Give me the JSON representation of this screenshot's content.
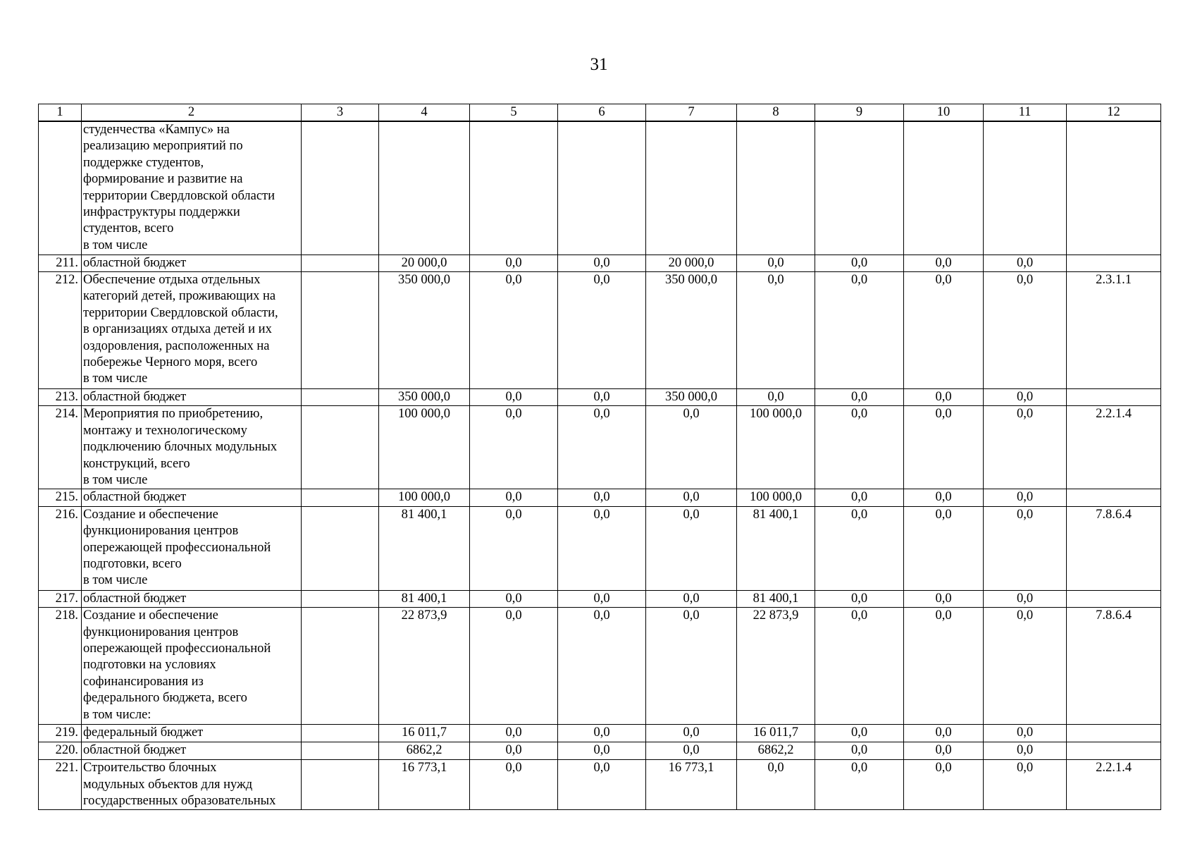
{
  "page_number": "31",
  "table": {
    "headers": [
      "1",
      "2",
      "3",
      "4",
      "5",
      "6",
      "7",
      "8",
      "9",
      "10",
      "11",
      "12"
    ],
    "rows": [
      {
        "n": "",
        "desc": [
          "студенчества «Кампус» на",
          "реализацию мероприятий по",
          "поддержке студентов,",
          "формирование и развитие на",
          "территории Свердловской области",
          "инфраструктуры поддержки",
          "студентов, всего",
          "в том числе"
        ],
        "c3": "",
        "values": [
          "",
          "",
          "",
          "",
          "",
          "",
          "",
          ""
        ],
        "code": ""
      },
      {
        "n": "211.",
        "desc": [
          "областной бюджет"
        ],
        "c3": "",
        "values": [
          "20 000,0",
          "0,0",
          "0,0",
          "20 000,0",
          "0,0",
          "0,0",
          "0,0",
          "0,0"
        ],
        "code": ""
      },
      {
        "n": "212.",
        "desc": [
          "Обеспечение отдыха отдельных",
          "категорий детей, проживающих на",
          "территории Свердловской области,",
          "в организациях отдыха детей и их",
          "оздоровления, расположенных на",
          "побережье Черного моря, всего",
          "в том числе"
        ],
        "c3": "",
        "values": [
          "350 000,0",
          "0,0",
          "0,0",
          "350 000,0",
          "0,0",
          "0,0",
          "0,0",
          "0,0"
        ],
        "code": "2.3.1.1"
      },
      {
        "n": "213.",
        "desc": [
          "областной бюджет"
        ],
        "c3": "",
        "values": [
          "350 000,0",
          "0,0",
          "0,0",
          "350 000,0",
          "0,0",
          "0,0",
          "0,0",
          "0,0"
        ],
        "code": ""
      },
      {
        "n": "214.",
        "desc": [
          "Мероприятия по приобретению,",
          "монтажу и технологическому",
          "подключению блочных модульных",
          "конструкций, всего",
          "в том числе"
        ],
        "c3": "",
        "values": [
          "100 000,0",
          "0,0",
          "0,0",
          "0,0",
          "100 000,0",
          "0,0",
          "0,0",
          "0,0"
        ],
        "code": "2.2.1.4"
      },
      {
        "n": "215.",
        "desc": [
          "областной бюджет"
        ],
        "c3": "",
        "values": [
          "100 000,0",
          "0,0",
          "0,0",
          "0,0",
          "100 000,0",
          "0,0",
          "0,0",
          "0,0"
        ],
        "code": ""
      },
      {
        "n": "216.",
        "desc": [
          "Создание и обеспечение",
          "функционирования центров",
          "опережающей профессиональной",
          "подготовки, всего",
          "в том числе"
        ],
        "c3": "",
        "values": [
          "81 400,1",
          "0,0",
          "0,0",
          "0,0",
          "81 400,1",
          "0,0",
          "0,0",
          "0,0"
        ],
        "code": "7.8.6.4"
      },
      {
        "n": "217.",
        "desc": [
          "областной бюджет"
        ],
        "c3": "",
        "values": [
          "81 400,1",
          "0,0",
          "0,0",
          "0,0",
          "81 400,1",
          "0,0",
          "0,0",
          "0,0"
        ],
        "code": ""
      },
      {
        "n": "218.",
        "desc": [
          "Создание и обеспечение",
          "функционирования центров",
          "опережающей профессиональной",
          "подготовки на условиях",
          "софинансирования из",
          "федерального бюджета, всего",
          "в том числе:"
        ],
        "c3": "",
        "values": [
          "22 873,9",
          "0,0",
          "0,0",
          "0,0",
          "22 873,9",
          "0,0",
          "0,0",
          "0,0"
        ],
        "code": "7.8.6.4"
      },
      {
        "n": "219.",
        "desc": [
          "федеральный бюджет"
        ],
        "c3": "",
        "values": [
          "16 011,7",
          "0,0",
          "0,0",
          "0,0",
          "16 011,7",
          "0,0",
          "0,0",
          "0,0"
        ],
        "code": ""
      },
      {
        "n": "220.",
        "desc": [
          "областной бюджет"
        ],
        "c3": "",
        "values": [
          "6862,2",
          "0,0",
          "0,0",
          "0,0",
          "6862,2",
          "0,0",
          "0,0",
          "0,0"
        ],
        "code": ""
      },
      {
        "n": "221.",
        "desc": [
          "Строительство блочных",
          "модульных объектов для нужд",
          "государственных образовательных"
        ],
        "c3": "",
        "values": [
          "16 773,1",
          "0,0",
          "0,0",
          "16 773,1",
          "0,0",
          "0,0",
          "0,0",
          "0,0"
        ],
        "code": "2.2.1.4"
      }
    ]
  }
}
